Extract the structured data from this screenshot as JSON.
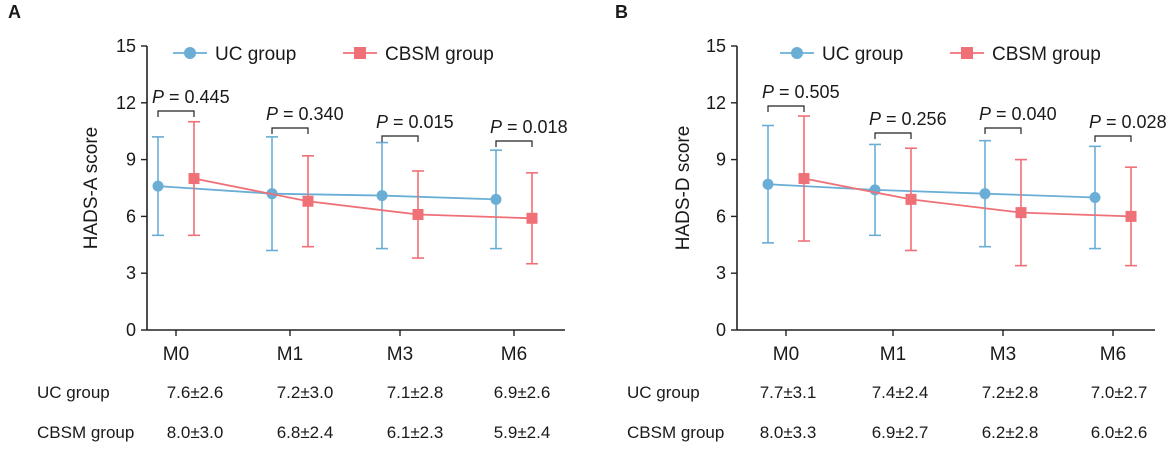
{
  "chart_data": [
    {
      "type": "line",
      "panel_label": "A",
      "title": "",
      "ylabel": "HADS-A score",
      "xlabel": "",
      "categories": [
        "M0",
        "M1",
        "M3",
        "M6"
      ],
      "ylim": [
        0,
        15
      ],
      "yticks": [
        "0",
        "3",
        "6",
        "9",
        "12",
        "15"
      ],
      "grid": false,
      "legend": "top",
      "series": [
        {
          "name": "UC group",
          "color": "#6aaed6",
          "marker": "circle",
          "values": [
            7.6,
            7.2,
            7.1,
            6.9
          ],
          "sd": [
            2.6,
            3.0,
            2.8,
            2.6
          ]
        },
        {
          "name": "CBSM group",
          "color": "#f07077",
          "marker": "square",
          "values": [
            8.0,
            6.8,
            6.1,
            5.9
          ],
          "sd": [
            3.0,
            2.4,
            2.3,
            2.4
          ]
        }
      ],
      "p_values": [
        "0.445",
        "0.340",
        "0.015",
        "0.018"
      ],
      "table": {
        "rows": [
          {
            "label": "UC group",
            "cells": [
              "7.6±2.6",
              "7.2±3.0",
              "7.1±2.8",
              "6.9±2.6"
            ]
          },
          {
            "label": "CBSM group",
            "cells": [
              "8.0±3.0",
              "6.8±2.4",
              "6.1±2.3",
              "5.9±2.4"
            ]
          }
        ]
      }
    },
    {
      "type": "line",
      "panel_label": "B",
      "title": "",
      "ylabel": "HADS-D score",
      "xlabel": "",
      "categories": [
        "M0",
        "M1",
        "M3",
        "M6"
      ],
      "ylim": [
        0,
        15
      ],
      "yticks": [
        "0",
        "3",
        "6",
        "9",
        "12",
        "15"
      ],
      "grid": false,
      "legend": "top",
      "series": [
        {
          "name": "UC group",
          "color": "#6aaed6",
          "marker": "circle",
          "values": [
            7.7,
            7.4,
            7.2,
            7.0
          ],
          "sd": [
            3.1,
            2.4,
            2.8,
            2.7
          ]
        },
        {
          "name": "CBSM group",
          "color": "#f07077",
          "marker": "square",
          "values": [
            8.0,
            6.9,
            6.2,
            6.0
          ],
          "sd": [
            3.3,
            2.7,
            2.8,
            2.6
          ]
        }
      ],
      "p_values": [
        "0.505",
        "0.256",
        "0.040",
        "0.028"
      ],
      "table": {
        "rows": [
          {
            "label": "UC group",
            "cells": [
              "7.7±3.1",
              "7.4±2.4",
              "7.2±2.8",
              "7.0±2.7"
            ]
          },
          {
            "label": "CBSM group",
            "cells": [
              "8.0±3.3",
              "6.9±2.7",
              "6.2±2.8",
              "6.0±2.6"
            ]
          }
        ]
      }
    }
  ]
}
